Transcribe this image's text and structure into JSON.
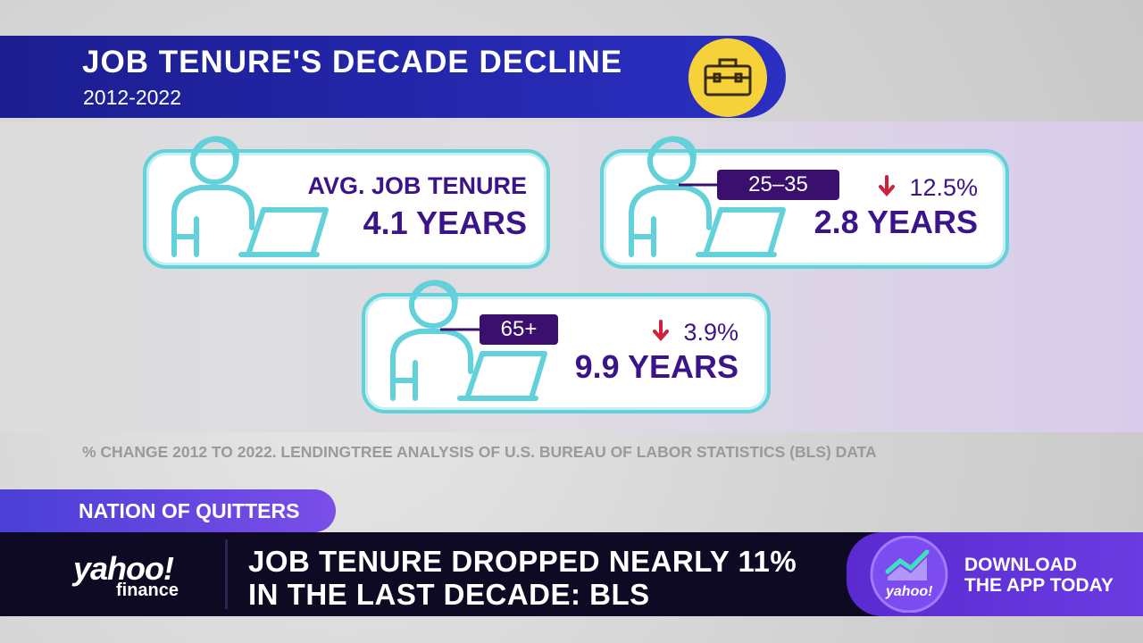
{
  "header": {
    "title": "JOB TENURE'S DECADE DECLINE",
    "subtitle": "2012-2022"
  },
  "cards": [
    {
      "label": "AVG. JOB TENURE",
      "value": "4.1 YEARS"
    },
    {
      "group": "25–35",
      "change": "12.5%",
      "value": "2.8 YEARS"
    },
    {
      "group": "65+",
      "change": "3.9%",
      "value": "9.9 YEARS"
    }
  ],
  "source": "% CHANGE 2012 TO 2022. LENDINGTREE ANALYSIS OF U.S. BUREAU OF LABOR STATISTICS (BLS) DATA",
  "ticker": {
    "tag": "NATION OF QUITTERS",
    "headline_lines": [
      "JOB TENURE DROPPED NEARLY 11%",
      "IN THE LAST DECADE: BLS"
    ],
    "brand": {
      "name": "yahoo!",
      "sub": "finance"
    },
    "app_logo": "yahoo!",
    "cta_lines": [
      "DOWNLOAD",
      "THE APP TODAY"
    ]
  }
}
